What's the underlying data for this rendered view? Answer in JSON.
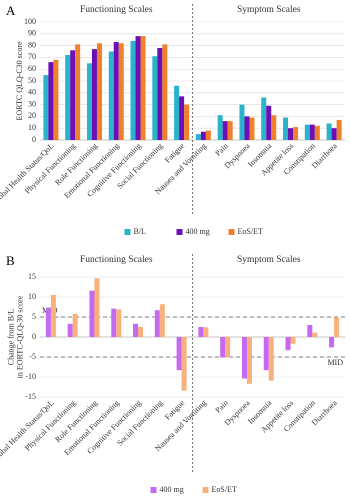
{
  "chart_data": [
    {
      "type": "bar",
      "panel_label": "A",
      "ylabel": [
        "EORTC QLQ-C30 score"
      ],
      "section_labels": [
        "Functioning Scales",
        "Symptom Scales"
      ],
      "categories": [
        "Global Health Status/QoL",
        "Physical Functioning",
        "Role Functioning",
        "Emotional Functioning",
        "Cognitive Functioning",
        "Social Functioning",
        "Fatigue",
        "Nausea and Vomiting",
        "Pain",
        "Dyspnoea",
        "Insomnia",
        "Appetite loss",
        "Constipation",
        "Diarrhoea"
      ],
      "series": [
        {
          "name": "B/L",
          "color": "#2bb2cc",
          "values": [
            55,
            72,
            65,
            75,
            84,
            71,
            46,
            5,
            21,
            30,
            36,
            19,
            13,
            14
          ]
        },
        {
          "name": "400 mg",
          "color": "#6a10b4",
          "values": [
            66,
            76,
            77,
            83,
            88,
            78,
            37,
            7,
            16,
            20,
            29,
            10,
            13,
            10
          ]
        },
        {
          "name": "EoS/ET",
          "color": "#f07f2e",
          "values": [
            68,
            81,
            82,
            82,
            88,
            81,
            30,
            8,
            16,
            19,
            21,
            11,
            12,
            17
          ]
        }
      ],
      "ylim": [
        0,
        100
      ],
      "yticks": [
        0,
        10,
        20,
        30,
        40,
        50,
        60,
        70,
        80,
        90,
        100
      ],
      "grid": true
    },
    {
      "type": "bar",
      "panel_label": "B",
      "ylabel": [
        "Change from B/L",
        "in EORTC-QLQ-30 score"
      ],
      "section_labels": [
        "Functioning Scales",
        "Symptom Scales"
      ],
      "categories": [
        "Global Health Status/QoL",
        "Physical Functioning",
        "Role Functioning",
        "Emotional Functioning",
        "Cognitive Functioning",
        "Social Functioning",
        "Fatigue",
        "Nausea and Vomiting",
        "Pain",
        "Dyspnoea",
        "Insomnia",
        "Appetite loss",
        "Constipation",
        "Diarrhoea"
      ],
      "series": [
        {
          "name": "400 mg",
          "color": "#c46af0",
          "values": [
            7.3,
            3.3,
            11.6,
            7.1,
            3.3,
            6.7,
            -8.3,
            2.5,
            -5.1,
            -10.4,
            -8.3,
            -3.3,
            3.0,
            -2.6
          ]
        },
        {
          "name": "EoS/ET",
          "color": "#f8b07c",
          "values": [
            10.5,
            5.8,
            14.7,
            6.9,
            2.5,
            8.2,
            -13.4,
            2.4,
            -5.1,
            -11.7,
            -10.9,
            -1.7,
            1.1,
            4.8
          ]
        }
      ],
      "reference_lines": [
        {
          "value": 5,
          "label": "MID"
        },
        {
          "value": -5,
          "label": "MID"
        }
      ],
      "ylim": [
        -15,
        15
      ],
      "yticks": [
        -15,
        -10,
        -5,
        0,
        5,
        10,
        15
      ],
      "grid": true
    }
  ]
}
